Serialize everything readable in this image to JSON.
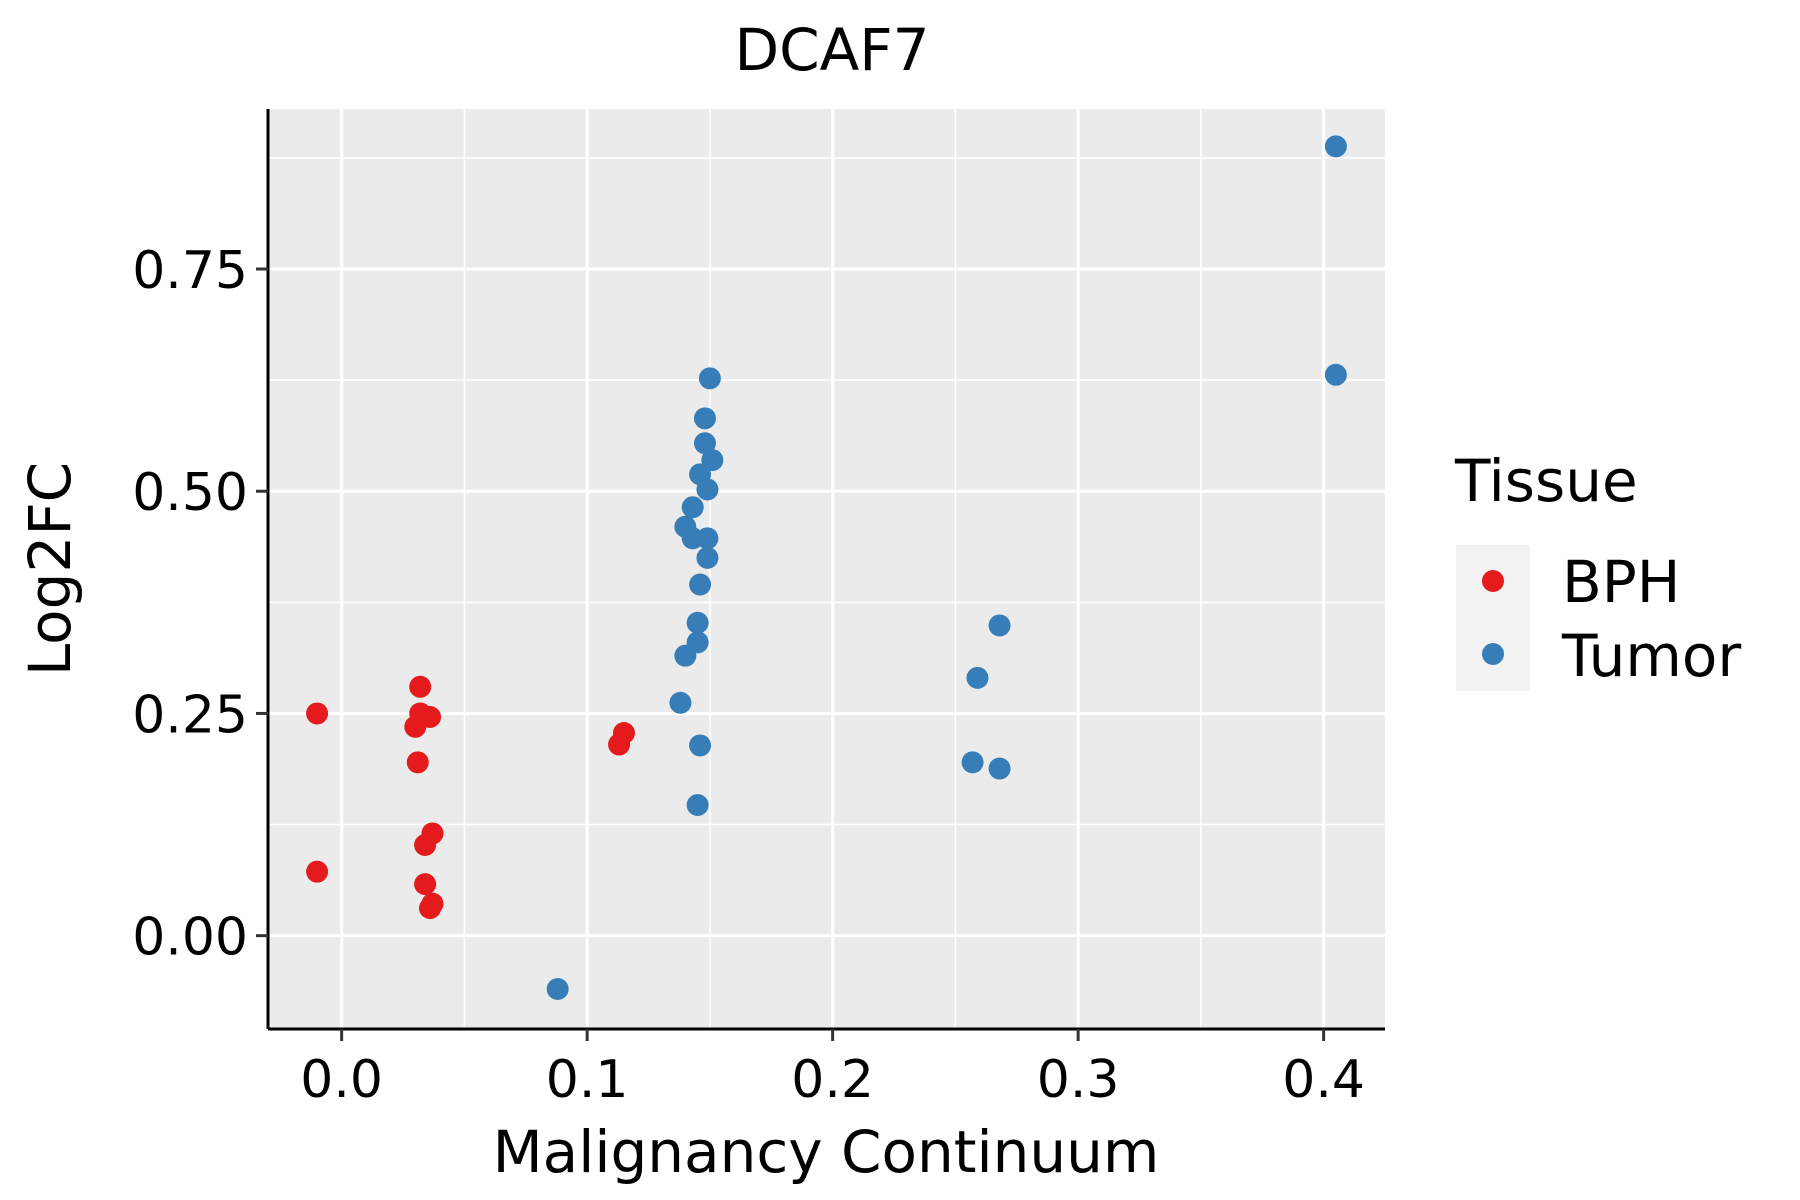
{
  "chart_data": {
    "type": "scatter",
    "title": "DCAF7",
    "xlabel": "Malignancy Continuum",
    "ylabel": "Log2FC",
    "xlim": [
      -0.03,
      0.425
    ],
    "ylim": [
      -0.105,
      0.93
    ],
    "x_ticks": [
      0.0,
      0.1,
      0.2,
      0.3,
      0.4
    ],
    "x_tick_labels": [
      "0.0",
      "0.1",
      "0.2",
      "0.3",
      "0.4"
    ],
    "y_ticks": [
      0.0,
      0.25,
      0.5,
      0.75
    ],
    "y_tick_labels": [
      "0.00",
      "0.25",
      "0.50",
      "0.75"
    ],
    "grid": true,
    "legend": {
      "title": "Tissue",
      "position": "right",
      "entries": [
        {
          "label": "BPH",
          "color": "#E41A1C"
        },
        {
          "label": "Tumor",
          "color": "#377EB8"
        }
      ]
    },
    "series": [
      {
        "name": "BPH",
        "color": "#E41A1C",
        "points": [
          {
            "x": -0.01,
            "y": 0.25
          },
          {
            "x": -0.01,
            "y": 0.072
          },
          {
            "x": 0.032,
            "y": 0.28
          },
          {
            "x": 0.032,
            "y": 0.25
          },
          {
            "x": 0.036,
            "y": 0.246
          },
          {
            "x": 0.03,
            "y": 0.235
          },
          {
            "x": 0.031,
            "y": 0.195
          },
          {
            "x": 0.037,
            "y": 0.115
          },
          {
            "x": 0.034,
            "y": 0.102
          },
          {
            "x": 0.034,
            "y": 0.058
          },
          {
            "x": 0.037,
            "y": 0.036
          },
          {
            "x": 0.036,
            "y": 0.031
          },
          {
            "x": 0.115,
            "y": 0.228
          },
          {
            "x": 0.113,
            "y": 0.215
          }
        ]
      },
      {
        "name": "Tumor",
        "color": "#377EB8",
        "points": [
          {
            "x": 0.088,
            "y": -0.06
          },
          {
            "x": 0.15,
            "y": 0.627
          },
          {
            "x": 0.148,
            "y": 0.582
          },
          {
            "x": 0.148,
            "y": 0.554
          },
          {
            "x": 0.151,
            "y": 0.535
          },
          {
            "x": 0.146,
            "y": 0.519
          },
          {
            "x": 0.149,
            "y": 0.502
          },
          {
            "x": 0.143,
            "y": 0.482
          },
          {
            "x": 0.14,
            "y": 0.46
          },
          {
            "x": 0.143,
            "y": 0.447
          },
          {
            "x": 0.149,
            "y": 0.447
          },
          {
            "x": 0.149,
            "y": 0.425
          },
          {
            "x": 0.146,
            "y": 0.395
          },
          {
            "x": 0.145,
            "y": 0.352
          },
          {
            "x": 0.145,
            "y": 0.33
          },
          {
            "x": 0.14,
            "y": 0.315
          },
          {
            "x": 0.138,
            "y": 0.262
          },
          {
            "x": 0.146,
            "y": 0.214
          },
          {
            "x": 0.145,
            "y": 0.147
          },
          {
            "x": 0.268,
            "y": 0.349
          },
          {
            "x": 0.259,
            "y": 0.29
          },
          {
            "x": 0.257,
            "y": 0.195
          },
          {
            "x": 0.268,
            "y": 0.188
          },
          {
            "x": 0.405,
            "y": 0.888
          },
          {
            "x": 0.405,
            "y": 0.631
          }
        ]
      }
    ]
  }
}
